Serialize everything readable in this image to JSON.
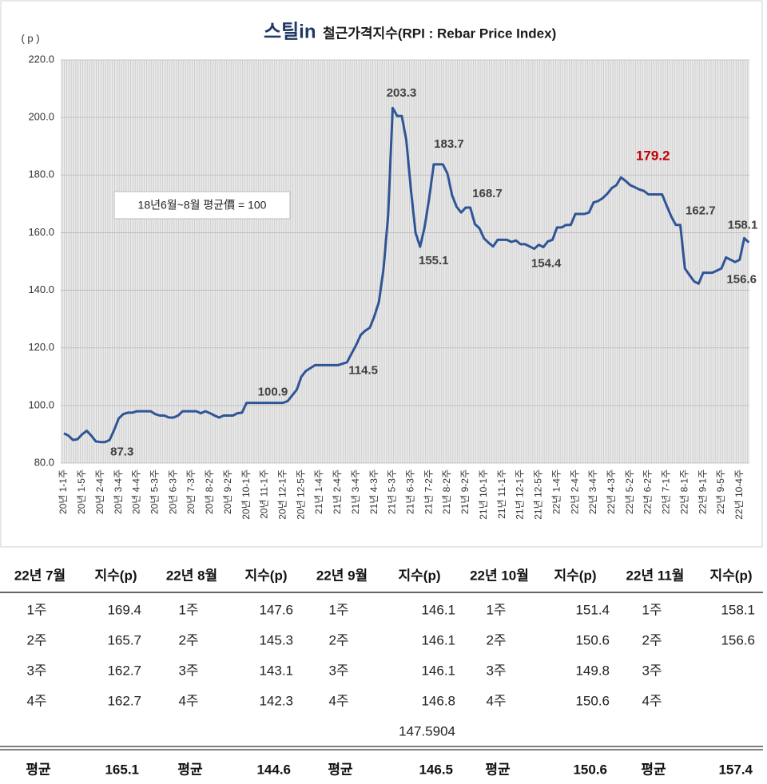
{
  "chart_data": {
    "type": "line",
    "logo": "스틸in",
    "title": "철근가격지수(RPI : Rebar Price Index)",
    "y_unit": "( p )",
    "note": "18년6월~8월 평균價 = 100",
    "categories": [
      "20년 1-1주",
      null,
      null,
      null,
      "20년 1-5주",
      null,
      null,
      null,
      "20년 2-4주",
      null,
      null,
      null,
      "20년 3-4주",
      null,
      null,
      null,
      "20년 4-4주",
      null,
      null,
      null,
      "20년 5-3주",
      null,
      null,
      null,
      "20년 6-3주",
      null,
      null,
      null,
      "20년 7-3주",
      null,
      null,
      null,
      "20년 8-2주",
      null,
      null,
      null,
      "20년 9-2주",
      null,
      null,
      null,
      "20년 10-1주",
      null,
      null,
      null,
      "20년 11-1주",
      null,
      null,
      null,
      "20년 12-1주",
      null,
      null,
      null,
      "20년 12-5주",
      null,
      null,
      null,
      "21년 1-4주",
      null,
      null,
      null,
      "21년 2-4주",
      null,
      null,
      null,
      "21년 3-4주",
      null,
      null,
      null,
      "21년 4-3주",
      null,
      null,
      null,
      "21년 5-3주",
      null,
      null,
      null,
      "21년 6-3주",
      null,
      null,
      null,
      "21년 7-2주",
      null,
      null,
      null,
      "21년 8-2주",
      null,
      null,
      null,
      "21년 9-2주",
      null,
      null,
      null,
      "21년 10-1주",
      null,
      null,
      null,
      "21년 11-1주",
      null,
      null,
      null,
      "21년 12-1주",
      null,
      null,
      null,
      "21년 12-5주",
      null,
      null,
      null,
      "22년 1-4주",
      null,
      null,
      null,
      "22년 2-4주",
      null,
      null,
      null,
      "22년 3-4주",
      null,
      null,
      null,
      "22년 4-3주",
      null,
      null,
      null,
      "22년 5-2주",
      null,
      null,
      null,
      "22년 6-2주",
      null,
      null,
      null,
      "22년 7-1주",
      null,
      null,
      null,
      "22년 8-1주",
      null,
      null,
      null,
      "22년 9-1주",
      null,
      null,
      null,
      "22년 9-5주",
      null,
      null,
      null,
      "22년 10-4주",
      null,
      null
    ],
    "series": [
      {
        "name": "RPI",
        "color": "#2f5597",
        "values": [
          90.3,
          89.5,
          88,
          88.3,
          90,
          91.2,
          89.5,
          87.5,
          87.3,
          87.3,
          88,
          91.5,
          95.5,
          97,
          97.5,
          97.5,
          98,
          98,
          98,
          98,
          97,
          96.5,
          96.5,
          95.8,
          95.8,
          96.5,
          98,
          98,
          98,
          98,
          97.3,
          98,
          97.3,
          96.5,
          95.8,
          96.5,
          96.5,
          96.5,
          97.3,
          97.5,
          100.9,
          100.9,
          100.9,
          100.9,
          100.9,
          100.9,
          100.9,
          100.9,
          100.9,
          101.5,
          103.5,
          105.5,
          110,
          112,
          113,
          114,
          114,
          114,
          114,
          114,
          114,
          114.5,
          115,
          118,
          121,
          124.5,
          126,
          127,
          131,
          136,
          147.6,
          166,
          203.3,
          200.5,
          200.5,
          192,
          175,
          160,
          155.1,
          162,
          172,
          183.7,
          183.7,
          183.7,
          180.5,
          173,
          169,
          167,
          168.7,
          168.7,
          163,
          161.5,
          158,
          156.5,
          155.2,
          157.5,
          157.5,
          157.5,
          156.8,
          157.3,
          156,
          156,
          155.2,
          154.4,
          155.8,
          155,
          157,
          157.5,
          161.8,
          161.8,
          162.7,
          162.7,
          166.5,
          166.5,
          166.5,
          167,
          170.5,
          171,
          172,
          173.5,
          175.5,
          176.5,
          179.2,
          178,
          176.5,
          175.8,
          175,
          174.5,
          173.3,
          173.3,
          173.3,
          173.3,
          169.4,
          165.7,
          162.7,
          162.7,
          147.6,
          145.3,
          143.1,
          142.3,
          146.1,
          146.1,
          146.1,
          146.8,
          147.6,
          151.4,
          150.6,
          149.8,
          150.6,
          158.1,
          156.6
        ]
      }
    ],
    "ylim": [
      80,
      220
    ],
    "yticks": [
      {
        "value": 80,
        "label": "80.0"
      },
      {
        "value": 100,
        "label": "100.0"
      },
      {
        "value": 120,
        "label": "120.0"
      },
      {
        "value": 140,
        "label": "140.0"
      },
      {
        "value": 160,
        "label": "160.0"
      },
      {
        "value": 180,
        "label": "180.0"
      },
      {
        "value": 200,
        "label": "200.0"
      },
      {
        "value": 220,
        "label": "220.0"
      }
    ],
    "grid": true,
    "highlight_color": "#c00000"
  },
  "table": {
    "header": [
      "22년 7월",
      "지수(p)",
      "22년 8월",
      "지수(p)",
      "22년 9월",
      "지수(p)",
      "22년 10월",
      "지수(p)",
      "22년 11월",
      "지수(p)"
    ],
    "rows": [
      [
        "1주",
        "169.4",
        "1주",
        "147.6",
        "1주",
        "146.1",
        "1주",
        "151.4",
        "1주",
        "158.1"
      ],
      [
        "2주",
        "165.7",
        "2주",
        "145.3",
        "2주",
        "146.1",
        "2주",
        "150.6",
        "2주",
        "156.6"
      ],
      [
        "3주",
        "162.7",
        "3주",
        "143.1",
        "3주",
        "146.1",
        "3주",
        "149.8",
        "3주",
        null
      ],
      [
        "4주",
        "162.7",
        "4주",
        "142.3",
        "4주",
        "146.8",
        "4주",
        "150.6",
        "4주",
        null
      ]
    ],
    "note": "147.5904",
    "footer": [
      "평균",
      "165.1",
      "평균",
      "144.6",
      "평균",
      "146.5",
      "평균",
      "150.6",
      "평균",
      "157.4"
    ]
  }
}
